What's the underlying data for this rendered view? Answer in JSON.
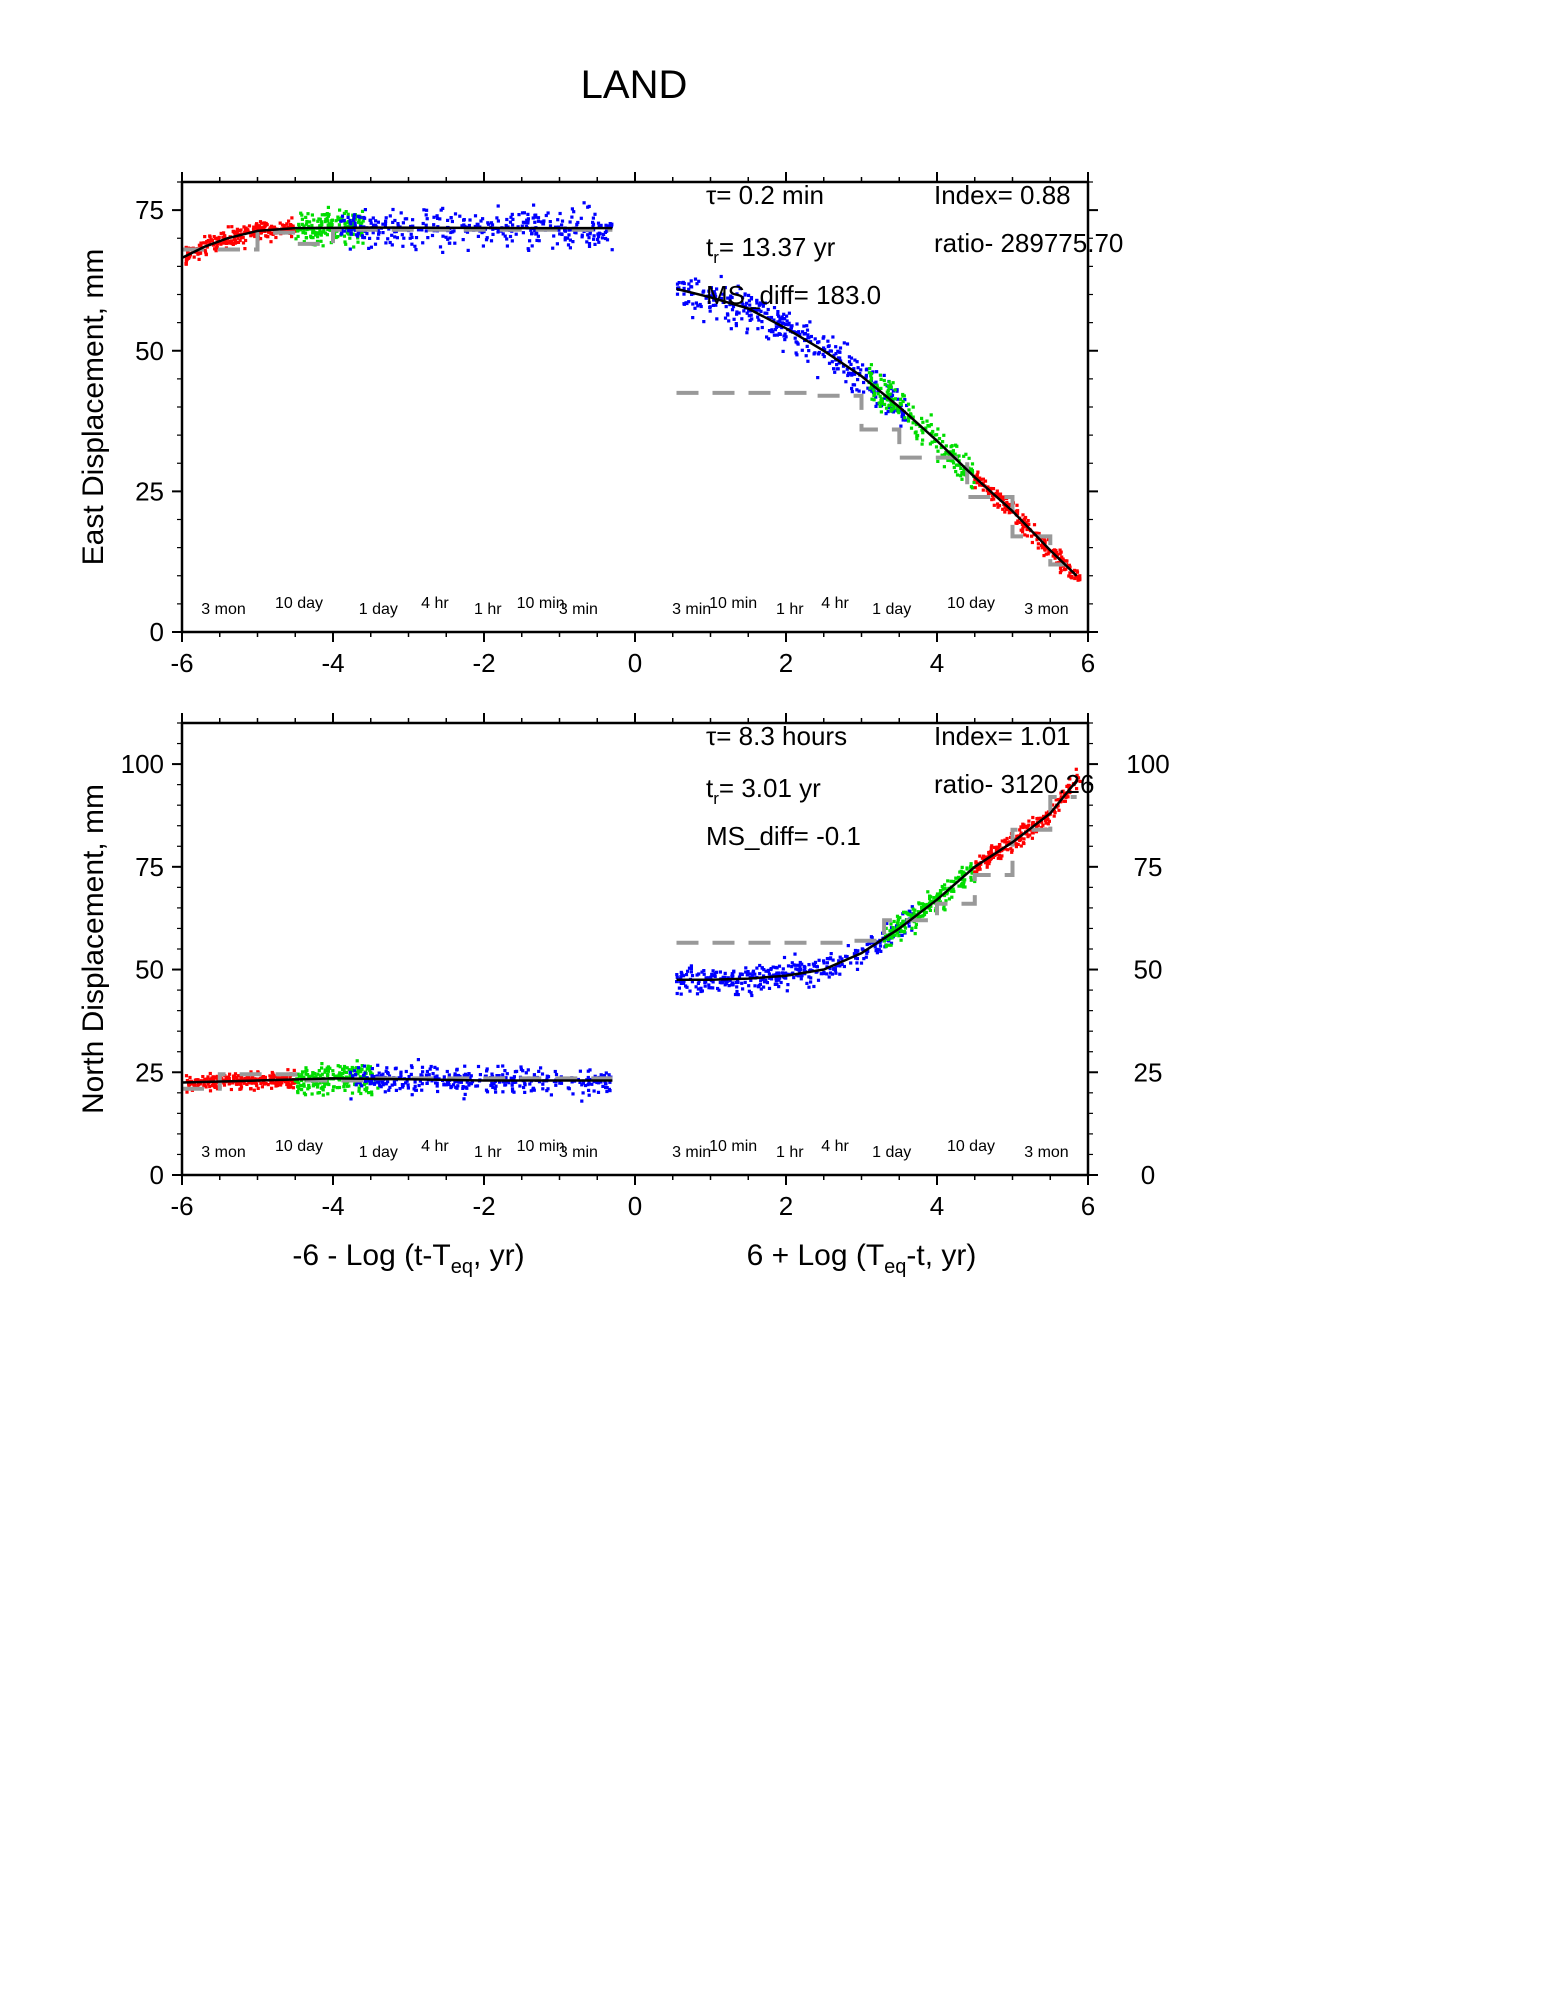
{
  "title": "LAND",
  "colors": {
    "seg1": "#ff0000",
    "seg2": "#00dd00",
    "seg3": "#0000ff",
    "fit": "#000000",
    "step": "#999999"
  },
  "chart_data": [
    {
      "type": "scatter",
      "id": "east",
      "ylabel": "East Displacement, mm",
      "xlim": [
        -6,
        6
      ],
      "ylim": [
        0,
        80
      ],
      "yticks": [
        0,
        25,
        50,
        75
      ],
      "xticks": [
        -6,
        -4,
        -2,
        0,
        2,
        4,
        6
      ],
      "right_axis_labels": false,
      "time_labels_left": [
        {
          "x": -5.45,
          "text": "3 mon"
        },
        {
          "x": -4.45,
          "text": "10 day"
        },
        {
          "x": -3.4,
          "text": "1 day"
        },
        {
          "x": -2.65,
          "text": "4 hr"
        },
        {
          "x": -1.95,
          "text": "1 hr"
        },
        {
          "x": -1.25,
          "text": "10 min"
        },
        {
          "x": -0.75,
          "text": "3 min"
        }
      ],
      "time_labels_right": [
        {
          "x": 0.75,
          "text": "3 min"
        },
        {
          "x": 1.3,
          "text": "10 min"
        },
        {
          "x": 2.05,
          "text": "1 hr"
        },
        {
          "x": 2.65,
          "text": "4 hr"
        },
        {
          "x": 3.4,
          "text": "1 day"
        },
        {
          "x": 4.45,
          "text": "10 day"
        },
        {
          "x": 5.45,
          "text": "3 mon"
        }
      ],
      "annotations": {
        "tau": "τ= 0.2 min",
        "tr_prefix": "t",
        "tr_sub": "r",
        "tr_value": "= 13.37 yr",
        "ms_diff": "MS_diff= 183.0",
        "index": "Index= 0.88",
        "ratio": "ratio- 289775.70"
      },
      "fit_left": [
        [
          -6,
          66.5
        ],
        [
          -5.7,
          68.5
        ],
        [
          -5.4,
          70
        ],
        [
          -5,
          71.3
        ],
        [
          -4.5,
          71.8
        ],
        [
          -3.5,
          71.9
        ],
        [
          -1.5,
          71.8
        ],
        [
          -0.3,
          71.8
        ]
      ],
      "fit_right": [
        [
          0.55,
          61
        ],
        [
          1,
          59.5
        ],
        [
          1.5,
          57.5
        ],
        [
          2,
          54
        ],
        [
          2.5,
          50
        ],
        [
          3,
          45.5
        ],
        [
          3.5,
          40
        ],
        [
          4,
          34
        ],
        [
          4.5,
          27.5
        ],
        [
          5,
          21.5
        ],
        [
          5.5,
          14.5
        ],
        [
          5.85,
          10
        ]
      ],
      "step_left": [
        [
          -6,
          68
        ],
        [
          -5,
          68
        ],
        [
          -5,
          71
        ],
        [
          -4.5,
          71
        ],
        [
          -4.5,
          69
        ],
        [
          -4,
          69
        ],
        [
          -4,
          71.5
        ],
        [
          -0.3,
          71.5
        ]
      ],
      "step_right": [
        [
          0.55,
          42.5
        ],
        [
          2.3,
          42.5
        ],
        [
          2.3,
          42
        ],
        [
          3,
          42
        ],
        [
          3,
          36
        ],
        [
          3.5,
          36
        ],
        [
          3.5,
          31
        ],
        [
          4.4,
          31
        ],
        [
          4.4,
          24
        ],
        [
          5,
          24
        ],
        [
          5,
          17
        ],
        [
          5.5,
          17
        ],
        [
          5.5,
          12
        ],
        [
          5.85,
          12
        ]
      ],
      "scatter_left": [
        {
          "series": "seg1",
          "from": -5.95,
          "to": -4.5,
          "n": 260,
          "noise": 1.2
        },
        {
          "series": "seg2",
          "from": -4.5,
          "to": -3.6,
          "n": 180,
          "noise": 2.2
        },
        {
          "series": "seg3",
          "from": -3.9,
          "to": -0.3,
          "n": 360,
          "noise": 2.4
        }
      ],
      "scatter_right": [
        {
          "series": "seg3",
          "from": 0.55,
          "to": 3.6,
          "n": 380,
          "noise": 2.4
        },
        {
          "series": "seg2",
          "from": 3.1,
          "to": 4.5,
          "n": 200,
          "noise": 2.2
        },
        {
          "series": "seg1",
          "from": 4.5,
          "to": 5.9,
          "n": 220,
          "noise": 1.2
        }
      ]
    },
    {
      "type": "scatter",
      "id": "north",
      "ylabel": "North Displacement, mm",
      "xlabel_left_prefix": "-6 - Log (t-T",
      "xlabel_left_sub": "eq",
      "xlabel_left_suffix": ", yr)",
      "xlabel_right_prefix": "6 + Log (T",
      "xlabel_right_sub": "eq",
      "xlabel_right_suffix": "-t, yr)",
      "xlim": [
        -6,
        6
      ],
      "ylim": [
        0,
        110
      ],
      "yticks": [
        0,
        25,
        50,
        75,
        100
      ],
      "xticks": [
        -6,
        -4,
        -2,
        0,
        2,
        4,
        6
      ],
      "right_axis_labels": true,
      "time_labels_left": [
        {
          "x": -5.45,
          "text": "3 mon"
        },
        {
          "x": -4.45,
          "text": "10 day"
        },
        {
          "x": -3.4,
          "text": "1 day"
        },
        {
          "x": -2.65,
          "text": "4 hr"
        },
        {
          "x": -1.95,
          "text": "1 hr"
        },
        {
          "x": -1.25,
          "text": "10 min"
        },
        {
          "x": -0.75,
          "text": "3 min"
        }
      ],
      "time_labels_right": [
        {
          "x": 0.75,
          "text": "3 min"
        },
        {
          "x": 1.3,
          "text": "10 min"
        },
        {
          "x": 2.05,
          "text": "1 hr"
        },
        {
          "x": 2.65,
          "text": "4 hr"
        },
        {
          "x": 3.4,
          "text": "1 day"
        },
        {
          "x": 4.45,
          "text": "10 day"
        },
        {
          "x": 5.45,
          "text": "3 mon"
        }
      ],
      "annotations": {
        "tau": "τ= 8.3 hours",
        "tr_prefix": "t",
        "tr_sub": "r",
        "tr_value": "= 3.01 yr",
        "ms_diff": "MS_diff= -0.1",
        "index": "Index= 1.01",
        "ratio": "ratio- 3120.26"
      },
      "fit_left": [
        [
          -6,
          22.5
        ],
        [
          -5,
          23
        ],
        [
          -4,
          23.5
        ],
        [
          -3,
          23.3
        ],
        [
          -2,
          23
        ],
        [
          -0.3,
          23
        ]
      ],
      "fit_right": [
        [
          0.55,
          47.5
        ],
        [
          1,
          47.5
        ],
        [
          1.5,
          47.8
        ],
        [
          2,
          48.5
        ],
        [
          2.5,
          50
        ],
        [
          3,
          54
        ],
        [
          3.5,
          60
        ],
        [
          4,
          67
        ],
        [
          4.5,
          75
        ],
        [
          5,
          81
        ],
        [
          5.5,
          88
        ],
        [
          5.85,
          96
        ]
      ],
      "step_left": [
        [
          -6,
          21
        ],
        [
          -5.5,
          21
        ],
        [
          -5.5,
          24.5
        ],
        [
          -4.5,
          24.5
        ],
        [
          -4.5,
          23
        ],
        [
          -3.5,
          23
        ],
        [
          -3.5,
          23.5
        ],
        [
          -0.3,
          23.5
        ]
      ],
      "step_right": [
        [
          0.55,
          56.5
        ],
        [
          2.8,
          56.5
        ],
        [
          2.8,
          57
        ],
        [
          3.3,
          57
        ],
        [
          3.3,
          62
        ],
        [
          4,
          62
        ],
        [
          4,
          66
        ],
        [
          4.5,
          66
        ],
        [
          4.5,
          73
        ],
        [
          5,
          73
        ],
        [
          5,
          84
        ],
        [
          5.5,
          84
        ],
        [
          5.5,
          92
        ],
        [
          5.85,
          92
        ]
      ],
      "scatter_left": [
        {
          "series": "seg1",
          "from": -5.95,
          "to": -4.5,
          "n": 260,
          "noise": 1.3
        },
        {
          "series": "seg2",
          "from": -4.5,
          "to": -3.4,
          "n": 200,
          "noise": 2.4
        },
        {
          "series": "seg3",
          "from": -3.8,
          "to": -0.3,
          "n": 360,
          "noise": 2.4
        }
      ],
      "scatter_right": [
        {
          "series": "seg3",
          "from": 0.55,
          "to": 3.7,
          "n": 380,
          "noise": 2.2
        },
        {
          "series": "seg2",
          "from": 3.3,
          "to": 4.5,
          "n": 200,
          "noise": 2.2
        },
        {
          "series": "seg1",
          "from": 4.5,
          "to": 5.9,
          "n": 220,
          "noise": 1.6
        }
      ]
    }
  ]
}
